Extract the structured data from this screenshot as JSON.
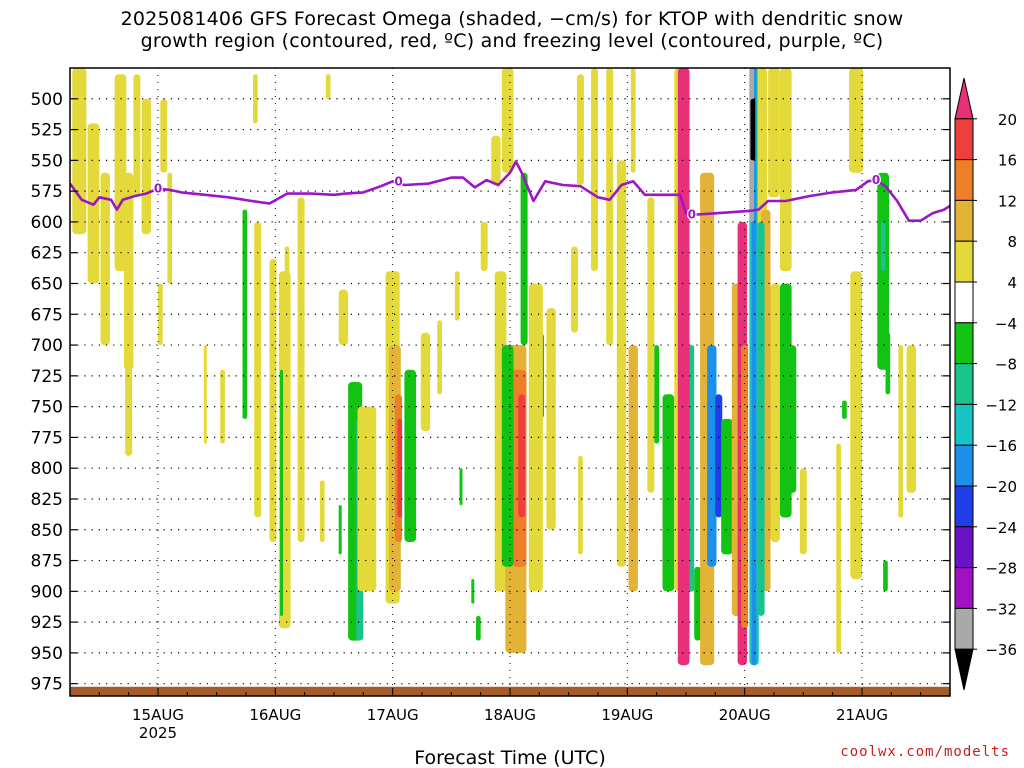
{
  "title_line1": "2025081406 GFS Forecast Omega (shaded, −cm/s) for KTOP with dendritic snow",
  "title_line2": "growth region (contoured, red, ºC) and freezing level (contoured, purple, ºC)",
  "credit": "coolwx.com/modelts",
  "chart_data": {
    "type": "heatmap",
    "xlabel": "Forecast Time (UTC)",
    "x_tick_labels": [
      "15AUG",
      "16AUG",
      "17AUG",
      "18AUG",
      "19AUG",
      "20AUG",
      "21AUG"
    ],
    "x_year_label": "2025",
    "x_range_days": [
      14.25,
      21.75
    ],
    "y_tick_labels": [
      "500",
      "525",
      "550",
      "575",
      "600",
      "625",
      "650",
      "675",
      "700",
      "725",
      "750",
      "775",
      "800",
      "825",
      "850",
      "875",
      "900",
      "925",
      "950",
      "975"
    ],
    "y_range_hpa": [
      475,
      985
    ],
    "colorbar": {
      "labels": [
        "20",
        "16",
        "12",
        "8",
        "4",
        "−4",
        "−8",
        "−12",
        "−16",
        "−20",
        "−24",
        "−28",
        "−32",
        "−36"
      ],
      "bins": [
        {
          "color": "#ea2f79",
          "range": ">20"
        },
        {
          "color": "#ef3e3e",
          "range": "16..20"
        },
        {
          "color": "#ee7e27",
          "range": "12..16"
        },
        {
          "color": "#e2b334",
          "range": "8..12"
        },
        {
          "color": "#e4d93b",
          "range": "4..8"
        },
        {
          "color": "#ffffff",
          "range": "-4..4"
        },
        {
          "color": "#13c313",
          "range": "-8..-4"
        },
        {
          "color": "#19c48c",
          "range": "-12..-8"
        },
        {
          "color": "#17c3c3",
          "range": "-16..-12"
        },
        {
          "color": "#1d90e9",
          "range": "-20..-16"
        },
        {
          "color": "#1f3ee9",
          "range": "-24..-20"
        },
        {
          "color": "#6a12c8",
          "range": "-28..-24"
        },
        {
          "color": "#a011c4",
          "range": "-32..-28"
        },
        {
          "color": "#a9a9a9",
          "range": "-36..-32"
        },
        {
          "color": "#000000",
          "range": "<-36"
        }
      ]
    },
    "freezing_level": {
      "color": "#9c16c6",
      "label": "0",
      "points": [
        [
          14.25,
          569
        ],
        [
          14.35,
          582
        ],
        [
          14.45,
          586
        ],
        [
          14.5,
          580
        ],
        [
          14.6,
          582
        ],
        [
          14.65,
          590
        ],
        [
          14.7,
          582
        ],
        [
          14.8,
          579
        ],
        [
          14.9,
          577
        ],
        [
          15.0,
          573
        ],
        [
          15.1,
          574
        ],
        [
          15.2,
          576
        ],
        [
          15.4,
          578
        ],
        [
          15.6,
          580
        ],
        [
          15.8,
          583
        ],
        [
          15.95,
          585
        ],
        [
          16.1,
          577
        ],
        [
          16.3,
          577
        ],
        [
          16.5,
          578
        ],
        [
          16.6,
          577
        ],
        [
          16.75,
          576
        ],
        [
          16.9,
          571
        ],
        [
          17.0,
          567
        ],
        [
          17.1,
          570
        ],
        [
          17.3,
          569
        ],
        [
          17.5,
          564
        ],
        [
          17.6,
          564
        ],
        [
          17.7,
          572
        ],
        [
          17.8,
          566
        ],
        [
          17.9,
          570
        ],
        [
          18.0,
          560
        ],
        [
          18.05,
          551
        ],
        [
          18.1,
          560
        ],
        [
          18.2,
          583
        ],
        [
          18.3,
          567
        ],
        [
          18.45,
          570
        ],
        [
          18.6,
          571
        ],
        [
          18.75,
          580
        ],
        [
          18.85,
          582
        ],
        [
          18.95,
          570
        ],
        [
          19.05,
          567
        ],
        [
          19.15,
          578
        ],
        [
          19.25,
          578
        ],
        [
          19.35,
          578
        ],
        [
          19.45,
          578
        ],
        [
          19.5,
          593
        ],
        [
          19.6,
          594
        ],
        [
          19.75,
          593
        ],
        [
          19.9,
          592
        ],
        [
          20.05,
          591
        ],
        [
          20.12,
          590
        ],
        [
          20.2,
          583
        ],
        [
          20.35,
          583
        ],
        [
          20.55,
          579
        ],
        [
          20.75,
          576
        ],
        [
          20.95,
          574
        ],
        [
          21.05,
          567
        ],
        [
          21.12,
          566
        ],
        [
          21.2,
          571
        ],
        [
          21.3,
          583
        ],
        [
          21.4,
          599
        ],
        [
          21.5,
          599
        ],
        [
          21.6,
          593
        ],
        [
          21.7,
          590
        ],
        [
          21.75,
          587
        ]
      ]
    },
    "surface_band_color": "#a55b2b"
  }
}
